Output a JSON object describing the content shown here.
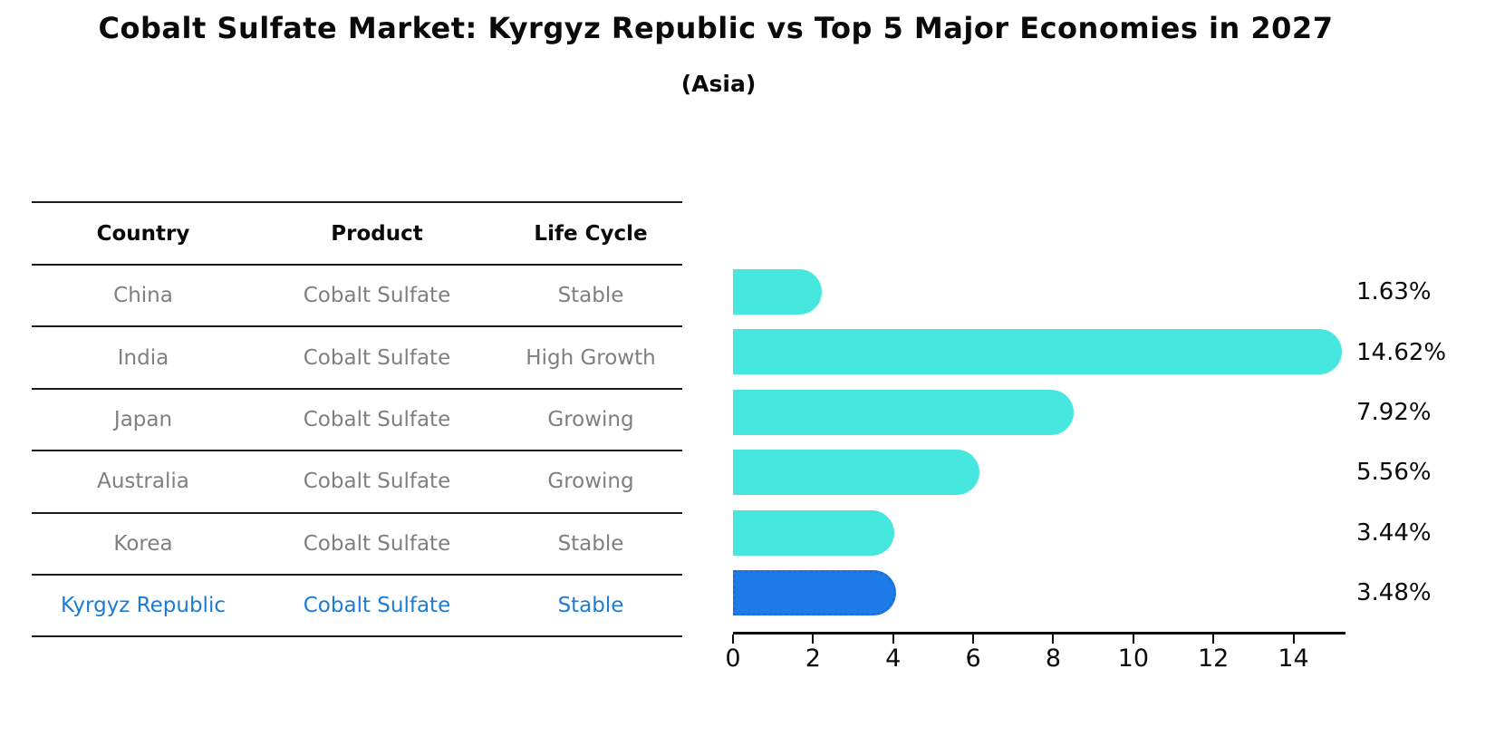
{
  "title": "Cobalt Sulfate Market: Kyrgyz Republic vs Top 5 Major Economies in 2027",
  "subtitle": "(Asia)",
  "table": {
    "headers": [
      "Country",
      "Product",
      "Life Cycle"
    ],
    "rows": [
      {
        "country": "China",
        "product": "Cobalt Sulfate",
        "life_cycle": "Stable",
        "highlight": false
      },
      {
        "country": "India",
        "product": "Cobalt Sulfate",
        "life_cycle": "High Growth",
        "highlight": false
      },
      {
        "country": "Japan",
        "product": "Cobalt Sulfate",
        "life_cycle": "Growing",
        "highlight": false
      },
      {
        "country": "Australia",
        "product": "Cobalt Sulfate",
        "life_cycle": "Growing",
        "highlight": false
      },
      {
        "country": "Korea",
        "product": "Cobalt Sulfate",
        "life_cycle": "Stable",
        "highlight": false
      },
      {
        "country": "Kyrgyz Republic",
        "product": "Cobalt Sulfate",
        "life_cycle": "Stable",
        "highlight": true
      }
    ]
  },
  "chart_data": {
    "type": "bar",
    "orientation": "horizontal",
    "title": "Cobalt Sulfate Market: Kyrgyz Republic vs Top 5 Major Economies in 2027",
    "subtitle": "(Asia)",
    "categories": [
      "China",
      "India",
      "Japan",
      "Australia",
      "Korea",
      "Kyrgyz Republic"
    ],
    "values": [
      1.63,
      14.62,
      7.92,
      5.56,
      3.44,
      3.48
    ],
    "value_labels": [
      "1.63%",
      "14.62%",
      "7.92%",
      "5.56%",
      "3.44%",
      "3.48%"
    ],
    "x_ticks": [
      0,
      2,
      4,
      6,
      8,
      10,
      12,
      14
    ],
    "xlim": [
      0,
      15.3
    ],
    "grid": false,
    "legend": "none",
    "bar_color": "#45E7DE",
    "highlight_index": 5,
    "highlight_bar_color": "#1E7CE8",
    "highlight_border_color": "#1A6FD8",
    "highlight_border_style": "dotted"
  },
  "colors": {
    "table_text": "#7f7f7f",
    "heading_text": "#0a0a0a",
    "highlight_text": "#1C7CD4",
    "axis": "#0a0a0a",
    "background": "#ffffff"
  }
}
